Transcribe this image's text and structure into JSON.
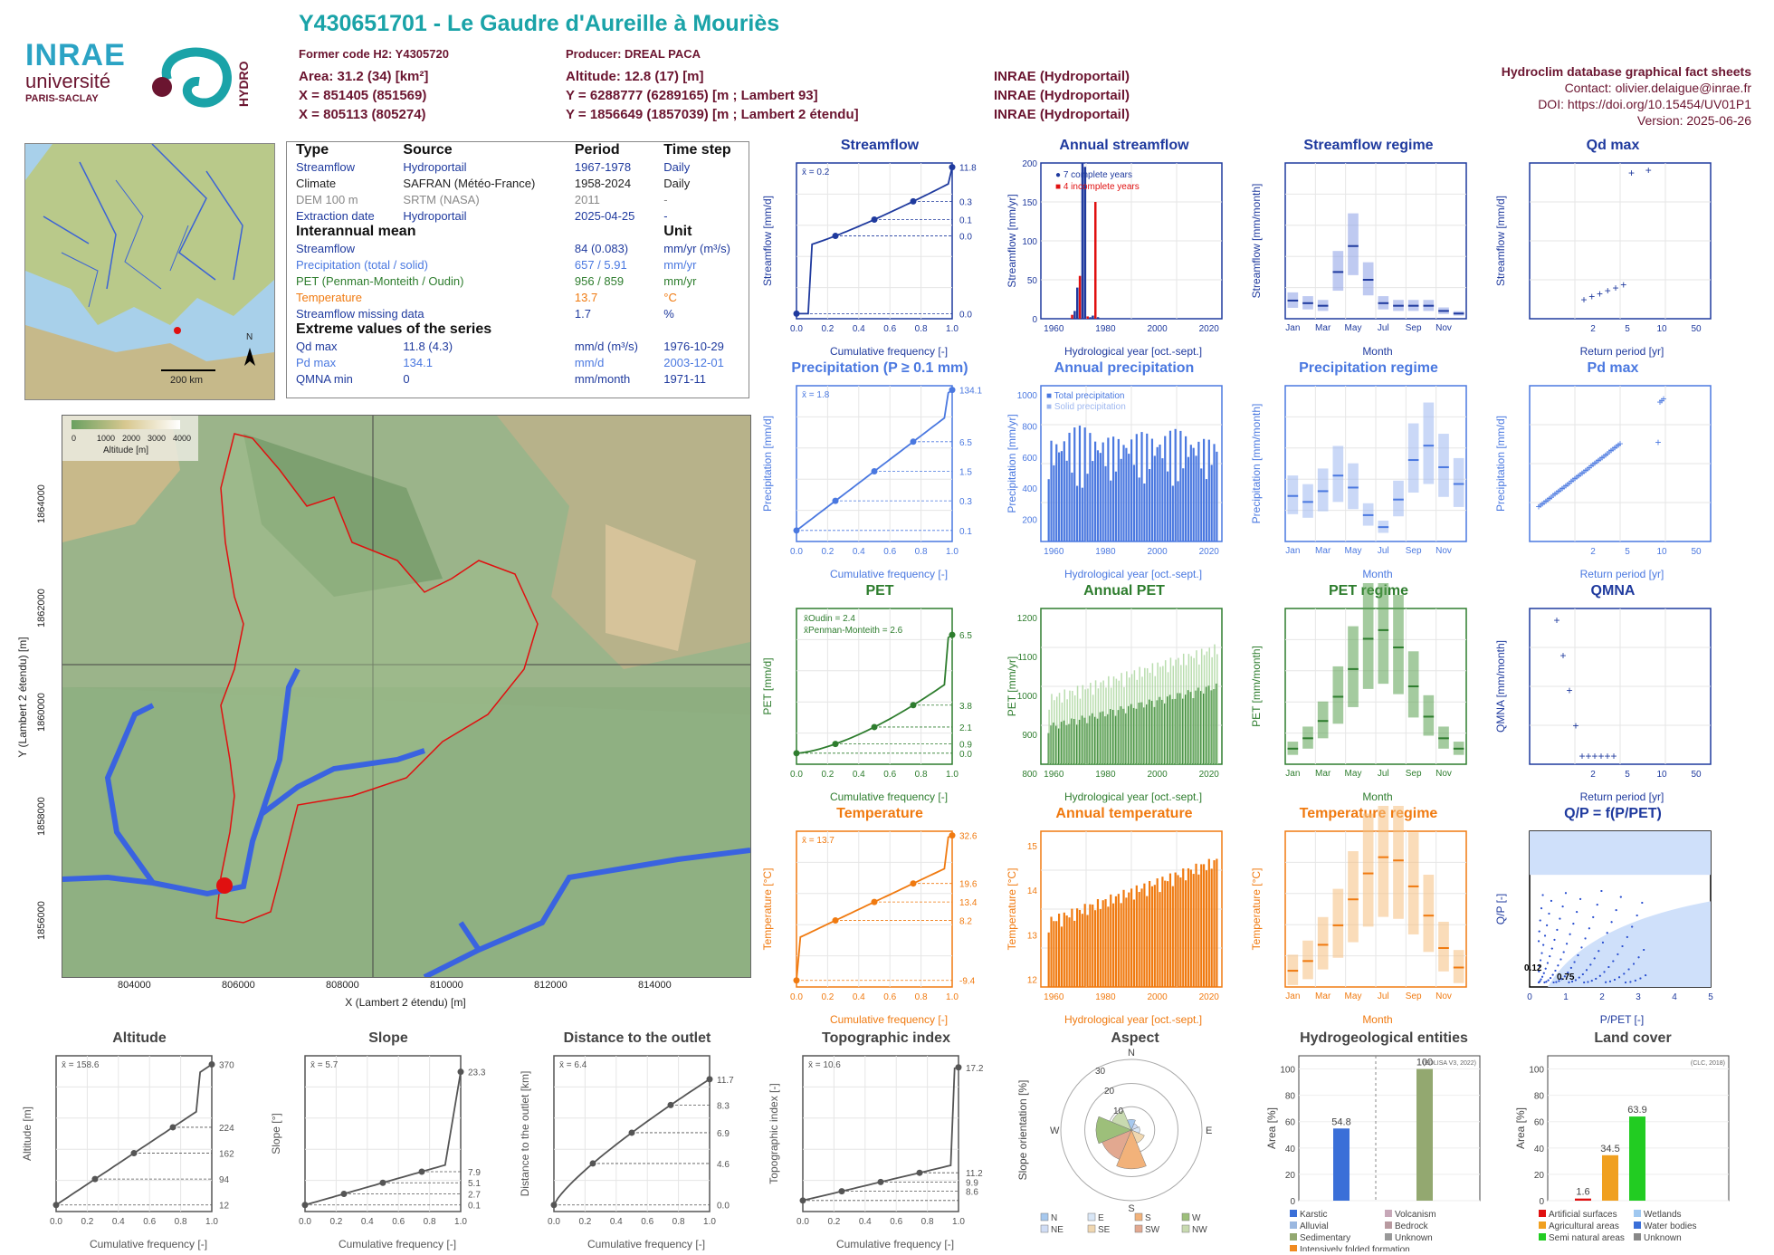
{
  "header": {
    "title": "Y430651701 - Le Gaudre d'Aureille à Mouriès",
    "former_code": "Former code H2: Y4305720",
    "producer": "Producer: DREAL PACA",
    "area": "Area: 31.2 (34) [km²]",
    "altitude": "Altitude: 12.8 (17) [m]",
    "x93": "X = 851405 (851569)",
    "y93": "Y = 6288777 (6289165) [m ; Lambert 93]",
    "x2e": "X = 805113 (805274)",
    "y2e": "Y = 1856649 (1857039) [m ; Lambert 2 étendu]",
    "src1": "INRAE (Hydroportail)",
    "src2": "INRAE (Hydroportail)",
    "src3": "INRAE (Hydroportail)",
    "db": "Hydroclim database graphical fact sheets",
    "contact": "Contact: olivier.delaigue@inrae.fr",
    "doi": "DOI: https://doi.org/10.15454/UV01P1",
    "version": "Version: 2025-06-26",
    "logo_inrae": "INRAE",
    "logo_univ": "université",
    "logo_paris": "PARIS-SACLAY",
    "logo_hydro": "HYDRO"
  },
  "info": {
    "head": [
      "Type",
      "Source",
      "Period",
      "Time step"
    ],
    "rows": [
      [
        "Streamflow",
        "Hydroportail",
        "1967-1978",
        "Daily"
      ],
      [
        "Climate",
        "SAFRAN (Météo-France)",
        "1958-2024",
        "Daily"
      ],
      [
        "DEM 100 m",
        "SRTM (NASA)",
        "2011",
        "-"
      ],
      [
        "Extraction date",
        "Hydroportail",
        "2025-04-25",
        "-"
      ]
    ],
    "mean_head": [
      "Interannual mean",
      "Unit"
    ],
    "mean_rows": [
      [
        "Streamflow",
        "84 (0.083)",
        "mm/yr (m³/s)"
      ],
      [
        "Precipitation (total / solid)",
        "657 / 5.91",
        "mm/yr"
      ],
      [
        "PET (Penman-Monteith / Oudin)",
        "956 / 859",
        "mm/yr"
      ],
      [
        "Temperature",
        "13.7",
        "°C"
      ],
      [
        "Streamflow missing data",
        "1.7",
        "%"
      ]
    ],
    "ext_head": "Extreme values of the series",
    "ext_rows": [
      [
        "Qd max",
        "11.8 (4.3)",
        "mm/d (m³/s)",
        "1976-10-29"
      ],
      [
        "Pd max",
        "134.1",
        "mm/d",
        "2003-12-01"
      ],
      [
        "QMNA min",
        "0",
        "mm/month",
        "1971-11"
      ]
    ]
  },
  "map_small": {
    "scale": "200 km",
    "north": "N"
  },
  "map": {
    "xlabel": "X (Lambert 2 étendu) [m]",
    "ylabel": "Y (Lambert 2 étendu) [m]",
    "xticks": [
      "804000",
      "806000",
      "808000",
      "810000",
      "812000",
      "814000"
    ],
    "yticks": [
      "1856000",
      "1858000",
      "1860000",
      "1862000",
      "1864000"
    ],
    "legend_title": "Altitude [m]",
    "legend_ticks": [
      "0",
      "1000",
      "2000",
      "3000",
      "4000"
    ]
  },
  "colors": {
    "streamflow": "#1f3a9e",
    "precip": "#4a78e0",
    "pet": "#2e7d2e",
    "temp": "#f07a10",
    "grey": "#555555",
    "maroon": "#6b1530"
  },
  "chart_data": [
    {
      "id": "streamflow",
      "type": "line",
      "title": "Streamflow",
      "xlabel": "Cumulative frequency [-]",
      "ylabel": "Streamflow [mm/d]",
      "mean": "x̄ = 0.2",
      "right_ticks": [
        "11.8",
        "0.3",
        "0.1",
        "0.0",
        "0.0"
      ]
    },
    {
      "id": "annual_streamflow",
      "type": "bar",
      "title": "Annual streamflow",
      "xlabel": "Hydrological year [oct.-sept.]",
      "ylabel": "Streamflow [mm/yr]",
      "legend": [
        "7 complete years",
        "4 incomplete years"
      ],
      "x": [
        1967,
        1968,
        1969,
        1970,
        1971,
        1972,
        1973,
        1974,
        1975,
        1976,
        1977
      ],
      "values": [
        5,
        10,
        40,
        55,
        200,
        195,
        3,
        2,
        4,
        150,
        2
      ],
      "ylim": [
        0,
        200
      ],
      "xticks": [
        "1960",
        "1980",
        "2000",
        "2020"
      ]
    },
    {
      "id": "streamflow_regime",
      "type": "box",
      "title": "Streamflow regime",
      "xlabel": "Month",
      "ylabel": "Streamflow [mm/month]",
      "categories": [
        "Jan",
        "Feb",
        "Mar",
        "Apr",
        "May",
        "Jun",
        "Jul",
        "Aug",
        "Sep",
        "Oct",
        "Nov",
        "Dec"
      ],
      "median": [
        3.5,
        3,
        2.5,
        9,
        14,
        7.5,
        3,
        2.5,
        2.5,
        2.5,
        1.5,
        1
      ],
      "ylim": [
        0,
        30
      ]
    },
    {
      "id": "qd_max",
      "type": "scatter",
      "title": "Qd max",
      "xlabel": "Return period [yr]",
      "ylabel": "Streamflow [mm/d]",
      "ylim": [
        0,
        8
      ]
    },
    {
      "id": "precipitation",
      "type": "line",
      "title": "Precipitation (P ≥ 0.1 mm)",
      "xlabel": "Cumulative frequency [-]",
      "ylabel": "Precipitation [mm/d]",
      "mean": "x̄ = 1.8",
      "right_ticks": [
        "134.1",
        "6.5",
        "1.5",
        "0.3",
        "0.1"
      ]
    },
    {
      "id": "annual_precipitation",
      "type": "bar",
      "title": "Annual precipitation",
      "xlabel": "Hydrological year [oct.-sept.]",
      "ylabel": "Precipitation [mm/yr]",
      "legend": [
        "Total precipitation",
        "Solid precipitation"
      ],
      "ylim": [
        0,
        1000
      ]
    },
    {
      "id": "precipitation_regime",
      "type": "box",
      "title": "Precipitation regime",
      "xlabel": "Month",
      "ylabel": "Precipitation [mm/month]",
      "categories": [
        "Jan",
        "Feb",
        "Mar",
        "Apr",
        "May",
        "Jun",
        "Jul",
        "Aug",
        "Sep",
        "Oct",
        "Nov",
        "Dec"
      ],
      "median": [
        38,
        33,
        42,
        55,
        45,
        22,
        12,
        35,
        68,
        80,
        62,
        48
      ],
      "ylim": [
        0,
        130
      ]
    },
    {
      "id": "pd_max",
      "type": "scatter",
      "title": "Pd max",
      "xlabel": "Return period [yr]",
      "ylabel": "Precipitation [mm/d]",
      "ylim": [
        0,
        140
      ]
    },
    {
      "id": "pet",
      "type": "line",
      "title": "PET",
      "xlabel": "Cumulative frequency [-]",
      "ylabel": "PET [mm/d]",
      "mean": [
        "x̄Oudin = 2.4",
        "x̄Penman-Monteith = 2.6"
      ],
      "right_ticks": [
        "6.5",
        "3.8",
        "2.1",
        "0.9",
        "0.0"
      ]
    },
    {
      "id": "annual_pet",
      "type": "bar",
      "title": "Annual PET",
      "xlabel": "Hydrological year [oct.-sept.]",
      "ylabel": "PET [mm/yr]",
      "ylim": [
        780,
        1220
      ]
    },
    {
      "id": "pet_regime",
      "type": "box",
      "title": "PET regime",
      "xlabel": "Month",
      "ylabel": "PET [mm/month]",
      "categories": [
        "Jan",
        "Feb",
        "Mar",
        "Apr",
        "May",
        "Jun",
        "Jul",
        "Aug",
        "Sep",
        "Oct",
        "Nov",
        "Dec"
      ],
      "median": [
        18,
        30,
        50,
        78,
        110,
        145,
        155,
        135,
        90,
        55,
        30,
        18
      ],
      "ylim": [
        0,
        180
      ]
    },
    {
      "id": "qmna",
      "type": "scatter",
      "title": "QMNA",
      "xlabel": "Return period [yr]",
      "ylabel": "QMNA [mm/month]",
      "ylim": [
        0,
        4
      ]
    },
    {
      "id": "temperature",
      "type": "line",
      "title": "Temperature",
      "xlabel": "Cumulative frequency [-]",
      "ylabel": "Temperature [°C]",
      "mean": "x̄ = 13.7",
      "right_ticks": [
        "32.6",
        "19.6",
        "13.4",
        "8.2",
        "-9.4"
      ]
    },
    {
      "id": "annual_temperature",
      "type": "bar",
      "title": "Annual temperature",
      "xlabel": "Hydrological year [oct.-sept.]",
      "ylabel": "Temperature [°C]",
      "ylim": [
        11.8,
        15.6
      ]
    },
    {
      "id": "temperature_regime",
      "type": "box",
      "title": "Temperature regime",
      "xlabel": "Month",
      "ylabel": "Temperature [°C]",
      "categories": [
        "Jan",
        "Feb",
        "Mar",
        "Apr",
        "May",
        "Jun",
        "Jul",
        "Aug",
        "Sep",
        "Oct",
        "Nov",
        "Dec"
      ],
      "median": [
        5.5,
        7,
        9.5,
        12.5,
        16.5,
        20.5,
        23,
        22.5,
        18.5,
        14,
        9,
        6
      ],
      "ylim": [
        3,
        27
      ]
    },
    {
      "id": "qp",
      "type": "scatter",
      "title": "Q/P = f(P/PET)",
      "xlabel": "P/PET [-]",
      "ylabel": "Q/P [-]",
      "annot": [
        "0.12",
        "0.75"
      ],
      "xlim": [
        0,
        5
      ],
      "ylim": [
        0,
        1.4
      ]
    },
    {
      "id": "altitude",
      "type": "line",
      "title": "Altitude",
      "xlabel": "Cumulative frequency [-]",
      "ylabel": "Altitude [m]",
      "mean": "x̄ = 158.6",
      "right_ticks": [
        "370",
        "224",
        "162",
        "94",
        "12"
      ]
    },
    {
      "id": "slope",
      "type": "line",
      "title": "Slope",
      "xlabel": "Cumulative frequency [-]",
      "ylabel": "Slope [°]",
      "mean": "x̄ = 5.7",
      "right_ticks": [
        "23.3",
        "7.9",
        "5.1",
        "2.7",
        "0.1"
      ]
    },
    {
      "id": "distance",
      "type": "line",
      "title": "Distance to the outlet",
      "xlabel": "Cumulative frequency [-]",
      "ylabel": "Distance to the outlet [km]",
      "mean": "x̄ = 6.4",
      "right_ticks": [
        "11.7",
        "8.3",
        "6.9",
        "4.6",
        "0.0"
      ]
    },
    {
      "id": "topo",
      "type": "line",
      "title": "Topographic index",
      "xlabel": "Cumulative frequency [-]",
      "ylabel": "Topographic index [-]",
      "mean": "x̄ = 10.6",
      "right_ticks": [
        "17.2",
        "11.2",
        "9.9",
        "8.6"
      ]
    },
    {
      "id": "aspect",
      "type": "pie",
      "title": "Aspect",
      "ylabel": "Slope orientation [%]",
      "legend": [
        "N",
        "NE",
        "E",
        "SE",
        "S",
        "SW",
        "W",
        "NW"
      ],
      "rings": [
        "10",
        "20",
        "30"
      ]
    },
    {
      "id": "hydrogeo",
      "type": "bar",
      "title": "Hydrogeological entities",
      "ylabel": "Area [%]",
      "source": "(BDLISA V3, 2022)",
      "values": [
        54.8,
        100
      ],
      "legend": [
        "Karstic",
        "Volcanism",
        "Alluvial",
        "Bedrock",
        "Sedimentary",
        "Unknown",
        "Intensively folded formation"
      ]
    },
    {
      "id": "landcover",
      "type": "bar",
      "title": "Land cover",
      "ylabel": "Area [%]",
      "source": "(CLC, 2018)",
      "values": [
        1.6,
        34.5,
        63.9
      ],
      "legend": [
        "Artificial surfaces",
        "Wetlands",
        "Agricultural areas",
        "Water bodies",
        "Semi natural areas",
        "Unknown"
      ]
    }
  ]
}
